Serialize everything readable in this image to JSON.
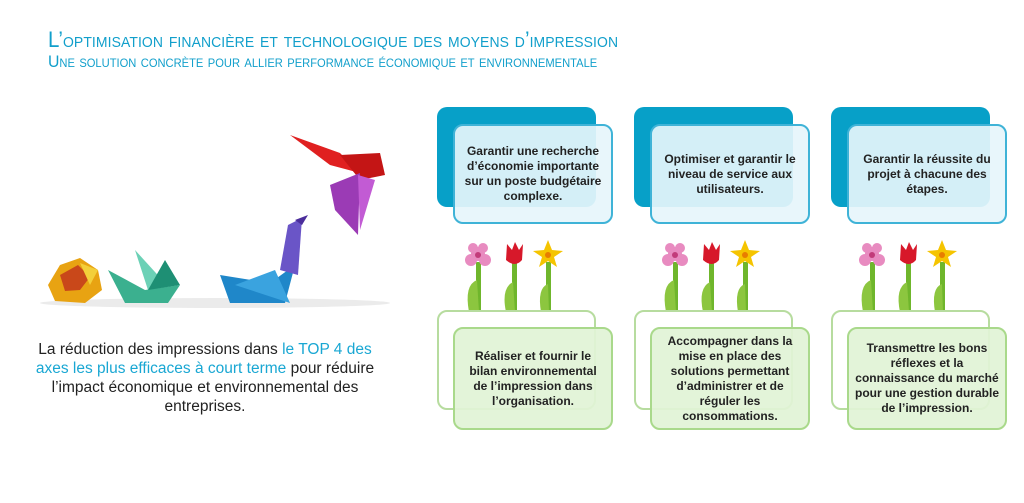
{
  "header": {
    "title": "L’optimisation financière et technologique des moyens d’impression",
    "subtitle": "Une solution concrète pour allier performance économique et environnementale"
  },
  "intro": {
    "before": "La réduction des impressions dans ",
    "highlight": "le TOP 4 des axes les plus efficaces à court terme",
    "after": " pour réduire l’impact économique et environnemental des entreprises."
  },
  "colors": {
    "accent": "#119fcb",
    "card_blue": "#07a0c8",
    "card_green": "#e1f3d6"
  },
  "columns": [
    {
      "top": "Garantir une recherche d’économie importante sur un poste budgétaire complexe.",
      "bottom": "Réaliser et fournir le bilan environnemental de l’impression dans l’organisation."
    },
    {
      "top": "Optimiser et garantir le niveau de service aux utilisateurs.",
      "bottom": "Accompagner dans la mise en place des solutions permettant d’administrer et de réguler les consommations."
    },
    {
      "top": "Garantir la réussite du projet à chacune des étapes.",
      "bottom": "Transmettre les bons réflexes et la connaissance du marché pour une gestion durable de l’impression."
    }
  ]
}
